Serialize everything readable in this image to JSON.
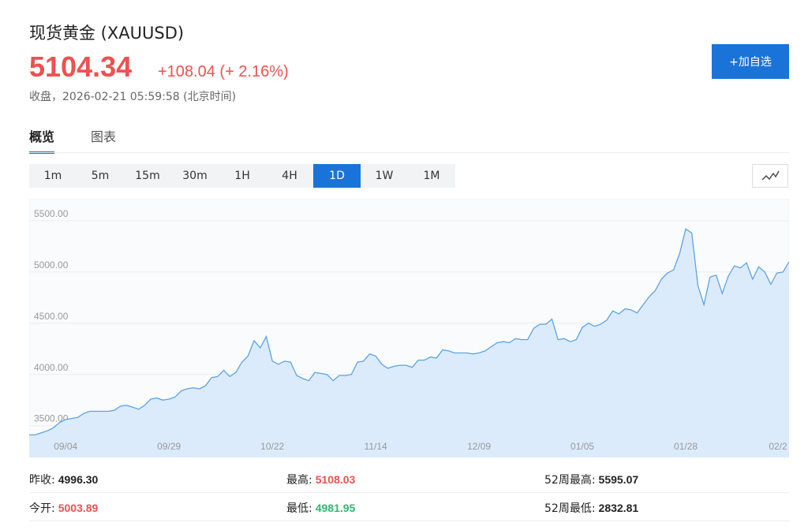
{
  "header": {
    "title": "现货黄金 (XAUUSD)",
    "price": "5104.34",
    "change": "+108.04 (+ 2.16%)",
    "status": "收盘，2026-02-21 05:59:58 (北京时间)",
    "watch_button": "+加自选"
  },
  "tabs": [
    "概览",
    "图表"
  ],
  "periods": [
    "1m",
    "5m",
    "15m",
    "30m",
    "1H",
    "4H",
    "1D",
    "1W",
    "1M"
  ],
  "active_period": "1D",
  "chart_data": {
    "type": "area",
    "color": "#5aa4e8",
    "fill": "#dcebfb",
    "grid": true,
    "categories": [
      null,
      null,
      null,
      null,
      null,
      null,
      "09/04",
      null,
      null,
      null,
      null,
      null,
      null,
      null,
      null,
      null,
      null,
      null,
      null,
      null,
      null,
      null,
      null,
      "09/29",
      null,
      null,
      null,
      null,
      null,
      null,
      null,
      null,
      null,
      null,
      null,
      null,
      null,
      null,
      null,
      null,
      "10/22",
      null,
      null,
      null,
      null,
      null,
      null,
      null,
      null,
      null,
      null,
      null,
      null,
      null,
      null,
      null,
      null,
      "11/14",
      null,
      null,
      null,
      null,
      null,
      null,
      null,
      null,
      null,
      null,
      null,
      null,
      null,
      null,
      null,
      null,
      "12/09",
      null,
      null,
      null,
      null,
      null,
      null,
      null,
      null,
      null,
      null,
      null,
      null,
      null,
      null,
      null,
      null,
      "01/05",
      null,
      null,
      null,
      null,
      null,
      null,
      null,
      null,
      null,
      null,
      null,
      null,
      null,
      null,
      null,
      null,
      "01/28",
      null,
      null,
      null,
      null,
      null,
      null,
      null,
      null,
      null,
      null,
      null,
      null,
      null,
      null,
      null,
      null,
      "02/2"
    ],
    "values": [
      3410,
      3410,
      3430,
      3450,
      3480,
      3530,
      3560,
      3570,
      3580,
      3620,
      3640,
      3640,
      3640,
      3640,
      3650,
      3690,
      3700,
      3680,
      3660,
      3700,
      3760,
      3770,
      3750,
      3760,
      3780,
      3840,
      3860,
      3870,
      3860,
      3890,
      3970,
      3980,
      4040,
      3980,
      4020,
      4120,
      4180,
      4330,
      4260,
      4370,
      4130,
      4100,
      4130,
      4120,
      3990,
      3960,
      3940,
      4020,
      4010,
      4000,
      3940,
      3990,
      3990,
      4000,
      4120,
      4130,
      4200,
      4180,
      4100,
      4060,
      4080,
      4090,
      4090,
      4070,
      4140,
      4140,
      4170,
      4160,
      4240,
      4230,
      4210,
      4210,
      4210,
      4200,
      4210,
      4230,
      4270,
      4310,
      4320,
      4310,
      4350,
      4340,
      4340,
      4450,
      4490,
      4490,
      4540,
      4340,
      4350,
      4320,
      4340,
      4460,
      4500,
      4470,
      4490,
      4530,
      4620,
      4590,
      4640,
      4630,
      4600,
      4680,
      4760,
      4820,
      4930,
      4990,
      5020,
      5180,
      5420,
      5380,
      4870,
      4680,
      4950,
      4970,
      4790,
      4960,
      5060,
      5040,
      5090,
      4930,
      5050,
      5000,
      4880,
      4990,
      5000,
      5100
    ],
    "ylim": [
      3190,
      5715
    ],
    "yticks": [
      {
        "value": 3500,
        "label": "3500.00"
      },
      {
        "value": 4000,
        "label": "4000.00"
      },
      {
        "value": 4500,
        "label": "4500.00"
      },
      {
        "value": 5000,
        "label": "5000.00"
      },
      {
        "value": 5500,
        "label": "5500.00"
      }
    ]
  },
  "stats": [
    [
      {
        "label": "昨收:",
        "value": "4996.30",
        "color": "#222222"
      },
      {
        "label": "最高:",
        "value": "5108.03",
        "color": "#f05050"
      },
      {
        "label": "52周最高:",
        "value": "5595.07",
        "color": "#222222"
      }
    ],
    [
      {
        "label": "今开:",
        "value": "5003.89",
        "color": "#f05050"
      },
      {
        "label": "最低:",
        "value": "4981.95",
        "color": "#2eb872"
      },
      {
        "label": "52周最低:",
        "value": "2832.81",
        "color": "#222222"
      }
    ]
  ]
}
